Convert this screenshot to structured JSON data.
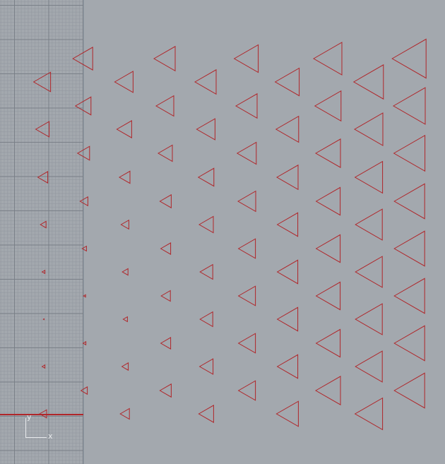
{
  "viewport": {
    "background": "#a3a8ae",
    "grid_color": "#7e848c",
    "stroke_color": "#b0262a"
  },
  "axis_indicator": {
    "y_label": "y",
    "x_label": "x"
  },
  "triangle_columns": [
    {
      "x": 62,
      "rows": [
        {
          "y": 116,
          "s": 24
        },
        {
          "y": 183,
          "s": 19
        },
        {
          "y": 251,
          "s": 14
        },
        {
          "y": 318,
          "s": 8
        },
        {
          "y": 385,
          "s": 4
        },
        {
          "y": 452,
          "s": 1
        },
        {
          "y": 519,
          "s": 4
        },
        {
          "y": 586,
          "s": 10
        }
      ]
    },
    {
      "x": 120,
      "rows": [
        {
          "y": 83,
          "s": 28
        },
        {
          "y": 150,
          "s": 22
        },
        {
          "y": 217,
          "s": 17
        },
        {
          "y": 285,
          "s": 11
        },
        {
          "y": 352,
          "s": 6
        },
        {
          "y": 419,
          "s": 3
        },
        {
          "y": 486,
          "s": 4
        },
        {
          "y": 553,
          "s": 9
        }
      ]
    },
    {
      "x": 178,
      "rows": [
        {
          "y": 116,
          "s": 26
        },
        {
          "y": 183,
          "s": 21
        },
        {
          "y": 251,
          "s": 15
        },
        {
          "y": 318,
          "s": 11
        },
        {
          "y": 385,
          "s": 8
        },
        {
          "y": 452,
          "s": 6
        },
        {
          "y": 519,
          "s": 9
        },
        {
          "y": 586,
          "s": 13
        }
      ]
    },
    {
      "x": 236,
      "rows": [
        {
          "y": 83,
          "s": 30
        },
        {
          "y": 150,
          "s": 25
        },
        {
          "y": 217,
          "s": 20
        },
        {
          "y": 285,
          "s": 16
        },
        {
          "y": 352,
          "s": 14
        },
        {
          "y": 419,
          "s": 13
        },
        {
          "y": 486,
          "s": 14
        },
        {
          "y": 553,
          "s": 16
        }
      ]
    },
    {
      "x": 294,
      "rows": [
        {
          "y": 116,
          "s": 30
        },
        {
          "y": 183,
          "s": 26
        },
        {
          "y": 251,
          "s": 22
        },
        {
          "y": 318,
          "s": 20
        },
        {
          "y": 385,
          "s": 18
        },
        {
          "y": 452,
          "s": 18
        },
        {
          "y": 519,
          "s": 19
        },
        {
          "y": 586,
          "s": 21
        }
      ]
    },
    {
      "x": 352,
      "rows": [
        {
          "y": 83,
          "s": 34
        },
        {
          "y": 150,
          "s": 30
        },
        {
          "y": 217,
          "s": 27
        },
        {
          "y": 285,
          "s": 25
        },
        {
          "y": 352,
          "s": 24
        },
        {
          "y": 419,
          "s": 24
        },
        {
          "y": 486,
          "s": 24
        },
        {
          "y": 553,
          "s": 24
        }
      ]
    },
    {
      "x": 410,
      "rows": [
        {
          "y": 116,
          "s": 34
        },
        {
          "y": 183,
          "s": 32
        },
        {
          "y": 251,
          "s": 30
        },
        {
          "y": 318,
          "s": 29
        },
        {
          "y": 385,
          "s": 29
        },
        {
          "y": 452,
          "s": 29
        },
        {
          "y": 519,
          "s": 29
        },
        {
          "y": 586,
          "s": 31
        }
      ]
    },
    {
      "x": 468,
      "rows": [
        {
          "y": 83,
          "s": 40
        },
        {
          "y": 150,
          "s": 37
        },
        {
          "y": 217,
          "s": 35
        },
        {
          "y": 285,
          "s": 34
        },
        {
          "y": 352,
          "s": 34
        },
        {
          "y": 419,
          "s": 34
        },
        {
          "y": 486,
          "s": 34
        },
        {
          "y": 553,
          "s": 35
        }
      ]
    },
    {
      "x": 526,
      "rows": [
        {
          "y": 116,
          "s": 42
        },
        {
          "y": 183,
          "s": 40
        },
        {
          "y": 251,
          "s": 39
        },
        {
          "y": 318,
          "s": 38
        },
        {
          "y": 385,
          "s": 38
        },
        {
          "y": 452,
          "s": 38
        },
        {
          "y": 519,
          "s": 38
        },
        {
          "y": 586,
          "s": 39
        }
      ]
    },
    {
      "x": 584,
      "rows": [
        {
          "y": 83,
          "s": 48
        },
        {
          "y": 150,
          "s": 45
        },
        {
          "y": 217,
          "s": 44
        },
        {
          "y": 285,
          "s": 43
        },
        {
          "y": 352,
          "s": 43
        },
        {
          "y": 419,
          "s": 43
        },
        {
          "y": 486,
          "s": 43
        },
        {
          "y": 553,
          "s": 43
        }
      ]
    }
  ]
}
